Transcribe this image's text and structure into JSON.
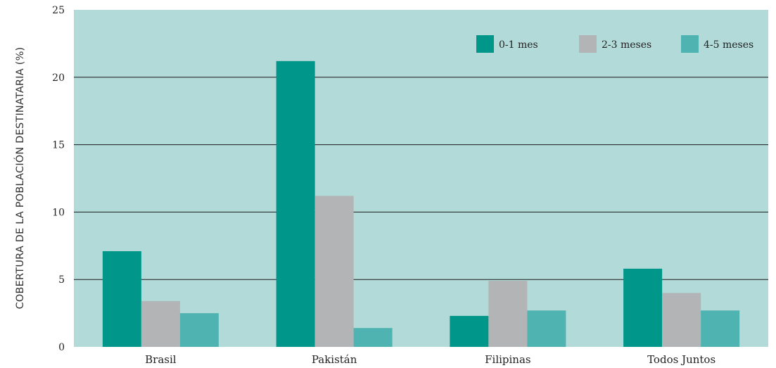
{
  "chart_data": {
    "type": "bar",
    "title": "",
    "xlabel": "",
    "ylabel": "COBERTURA DE LA POBLACIÓN DESTINATARIA (%)",
    "ylim": [
      0,
      25
    ],
    "yticks": [
      "0",
      "5",
      "10",
      "15",
      "20",
      "25"
    ],
    "categories": [
      "Brasil",
      "Pakistán",
      "Filipinas",
      "Todos Juntos"
    ],
    "series": [
      {
        "name": "0-1 mes",
        "color": "#00968a",
        "values": [
          7.1,
          21.2,
          2.3,
          5.8
        ]
      },
      {
        "name": "2-3 meses",
        "color": "#b3b4b6",
        "values": [
          3.4,
          11.2,
          4.9,
          4.0
        ]
      },
      {
        "name": "4-5 meses",
        "color": "#4fb3b1",
        "values": [
          2.5,
          1.4,
          2.7,
          2.7
        ]
      }
    ],
    "grid": true,
    "legend_position": "top-right",
    "plot_background": "#b2dad8"
  }
}
